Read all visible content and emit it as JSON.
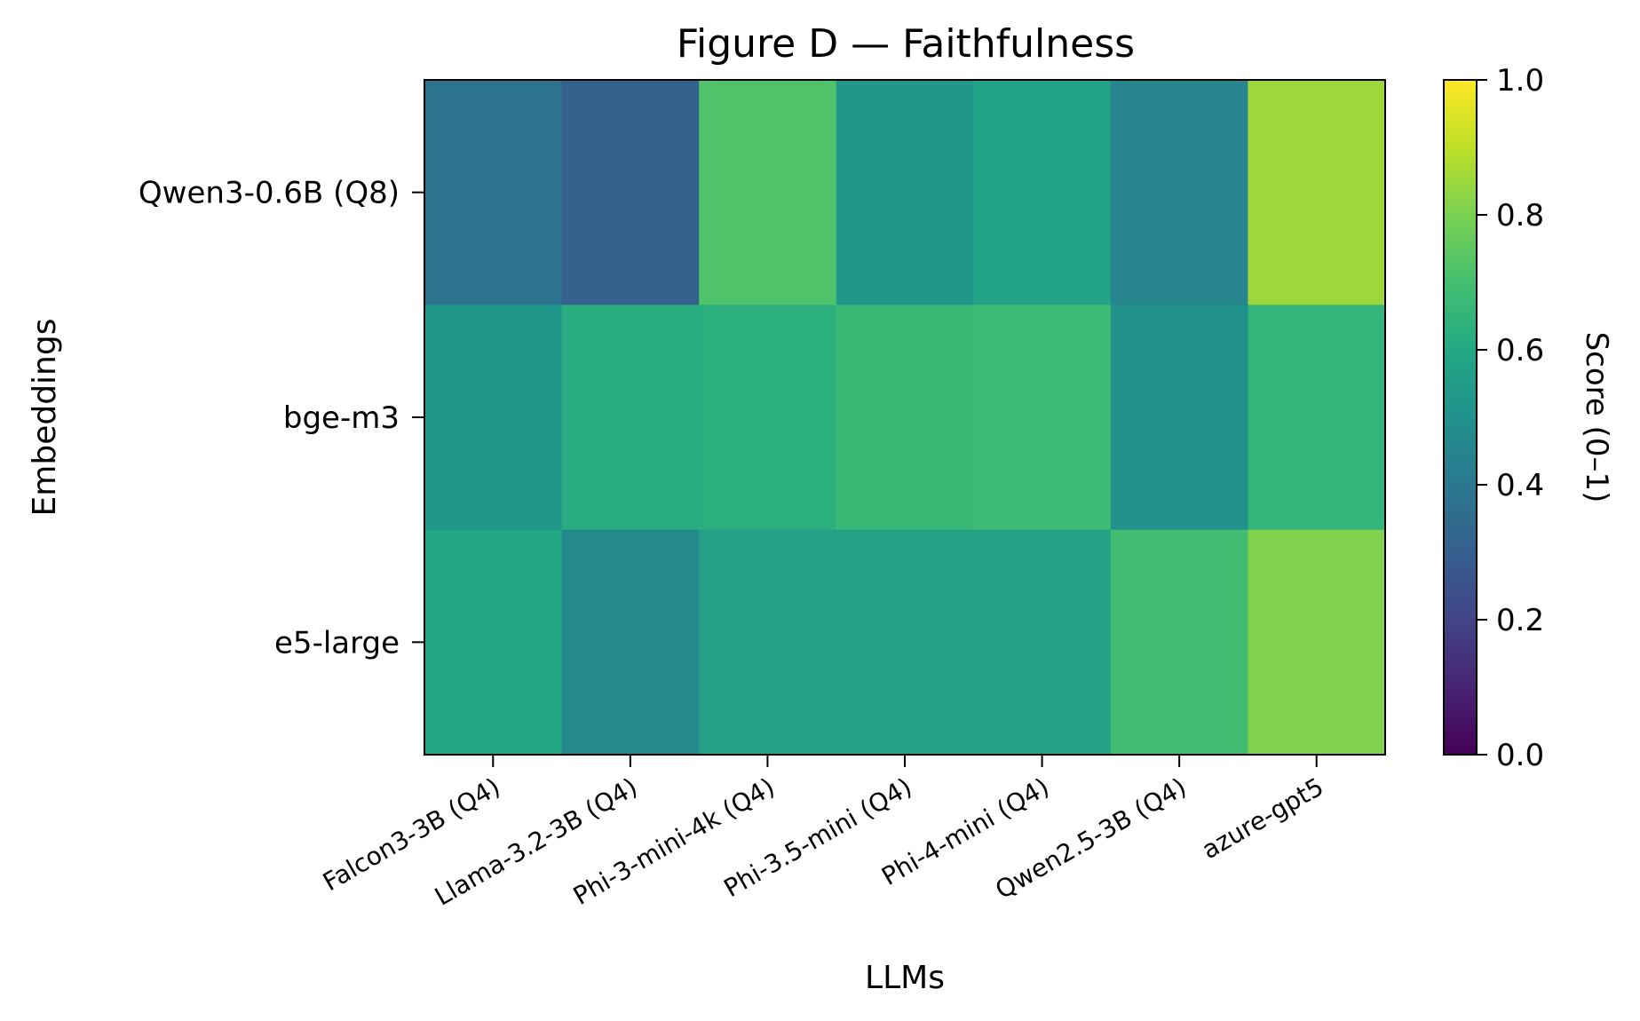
{
  "chart_data": {
    "type": "heatmap",
    "title": "Figure D — Faithfulness",
    "xlabel": "LLMs",
    "ylabel": "Embeddings",
    "x_categories": [
      "Falcon3-3B (Q4)",
      "Llama-3.2-3B (Q4)",
      "Phi-3-mini-4k (Q4)",
      "Phi-3.5-mini (Q4)",
      "Phi-4-mini (Q4)",
      "Qwen2.5-3B (Q4)",
      "azure-gpt5"
    ],
    "y_categories": [
      "Qwen3-0.6B (Q8)",
      "bge-m3",
      "e5-large"
    ],
    "values": [
      [
        0.38,
        0.31,
        0.72,
        0.52,
        0.58,
        0.45,
        0.85
      ],
      [
        0.52,
        0.62,
        0.63,
        0.67,
        0.68,
        0.5,
        0.65
      ],
      [
        0.6,
        0.47,
        0.57,
        0.57,
        0.57,
        0.69,
        0.81
      ]
    ],
    "colorbar": {
      "label": "Score (0–1)",
      "range": [
        0,
        1
      ],
      "ticks": [
        "0.0",
        "0.2",
        "0.4",
        "0.6",
        "0.8",
        "1.0"
      ],
      "colormap": "viridis"
    },
    "grid": false
  }
}
